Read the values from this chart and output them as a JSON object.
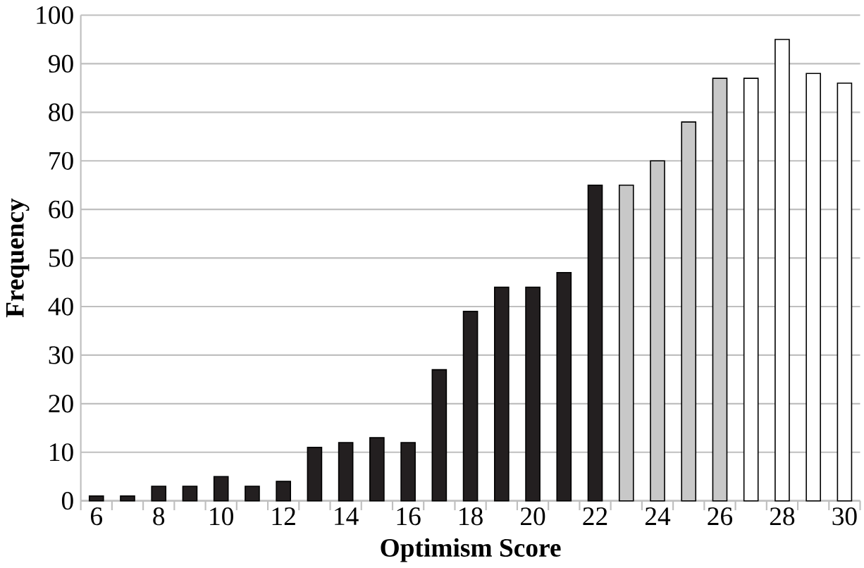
{
  "chart_data": {
    "type": "bar",
    "xlabel": "Optimism Score",
    "ylabel": "Frequency",
    "categories": [
      "6",
      null,
      "8",
      null,
      "10",
      null,
      "12",
      null,
      "14",
      null,
      "16",
      null,
      "18",
      null,
      "20",
      null,
      "22",
      null,
      "24",
      null,
      "26",
      null,
      "28",
      null,
      "30"
    ],
    "values": [
      1,
      1,
      3,
      3,
      5,
      3,
      4,
      11,
      12,
      13,
      12,
      27,
      39,
      44,
      44,
      47,
      65,
      65,
      70,
      78,
      87,
      87,
      95,
      88,
      86
    ],
    "colors": [
      "#231f20",
      "#231f20",
      "#231f20",
      "#231f20",
      "#231f20",
      "#231f20",
      "#231f20",
      "#231f20",
      "#231f20",
      "#231f20",
      "#231f20",
      "#231f20",
      "#231f20",
      "#231f20",
      "#231f20",
      "#231f20",
      "#231f20",
      "#c8c8c8",
      "#c8c8c8",
      "#c8c8c8",
      "#c8c8c8",
      "#ffffff",
      "#ffffff",
      "#ffffff",
      "#ffffff"
    ],
    "ylim": [
      0,
      100
    ],
    "yticks": [
      0,
      10,
      20,
      30,
      40,
      50,
      60,
      70,
      80,
      90,
      100
    ],
    "grid": "y"
  }
}
